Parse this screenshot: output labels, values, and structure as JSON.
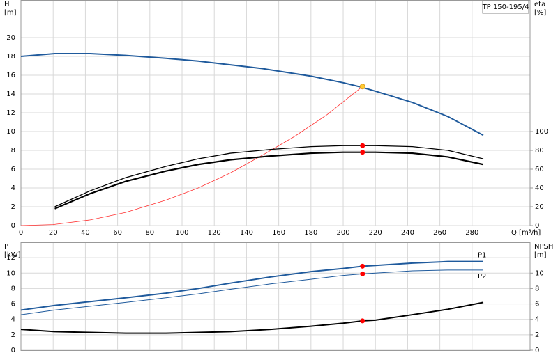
{
  "chart_data": [
    {
      "type": "line",
      "label": "TP 150-195/4",
      "xlabel": "Q [m³/h]",
      "ylabel": [
        "H",
        "[m]"
      ],
      "y2label": [
        "eta",
        "[%]"
      ],
      "xlim": [
        0,
        316
      ],
      "xticks": [
        0,
        20,
        40,
        60,
        80,
        100,
        120,
        140,
        160,
        180,
        200,
        220,
        240,
        260,
        280
      ],
      "ylim": [
        0,
        24
      ],
      "yticks": [
        0,
        2,
        4,
        6,
        8,
        10,
        12,
        14,
        16,
        18,
        20
      ],
      "y2lim": [
        0,
        240
      ],
      "y2ticks": [
        0,
        20,
        40,
        60,
        80,
        100
      ],
      "grid": true,
      "show_xtick_labels": true,
      "series": [
        {
          "color": "#1f5a9c",
          "width": 2,
          "x": [
            0,
            21,
            43,
            65,
            90,
            110,
            130,
            150,
            180,
            200,
            212,
            220,
            243,
            265,
            287
          ],
          "values": [
            18.0,
            18.3,
            18.3,
            18.1,
            17.8,
            17.5,
            17.1,
            16.7,
            15.9,
            15.2,
            14.7,
            14.3,
            13.1,
            11.6,
            9.6
          ]
        },
        {
          "color": "#ff3030",
          "width": 0.8,
          "x": [
            0,
            20,
            43,
            65,
            90,
            110,
            130,
            150,
            170,
            190,
            212
          ],
          "values": [
            0,
            0.1,
            0.6,
            1.4,
            2.7,
            4.0,
            5.6,
            7.5,
            9.5,
            11.8,
            14.8
          ]
        },
        {
          "color": "#000000",
          "width": 1.3,
          "axis": "y2",
          "x": [
            21,
            43,
            65,
            90,
            110,
            130,
            155,
            180,
            200,
            212,
            220,
            243,
            265,
            287
          ],
          "values": [
            20,
            37,
            51,
            63,
            71,
            77,
            81,
            84,
            85,
            85,
            85,
            84,
            80,
            71
          ]
        },
        {
          "color": "#000000",
          "width": 2.2,
          "axis": "y2",
          "x": [
            21,
            43,
            65,
            90,
            110,
            130,
            155,
            180,
            200,
            212,
            220,
            243,
            265,
            287
          ],
          "values": [
            18,
            34,
            47,
            58,
            65,
            70,
            74,
            77,
            78,
            78,
            78,
            77,
            73,
            65
          ]
        },
        {
          "type": "points",
          "color": "#ff0000",
          "axis": "y2",
          "x": [
            212,
            212
          ],
          "values": [
            85,
            78
          ]
        },
        {
          "type": "points",
          "color": "#ffcc33",
          "x": [
            212
          ],
          "values": [
            14.8
          ]
        }
      ]
    },
    {
      "type": "line",
      "ylabel": [
        "P",
        "[kW]"
      ],
      "y2label": [
        "NPSH",
        "[m]"
      ],
      "xlim": [
        0,
        316
      ],
      "xticks": [
        0,
        20,
        40,
        60,
        80,
        100,
        120,
        140,
        160,
        180,
        200,
        220,
        240,
        260,
        280
      ],
      "ylim": [
        0,
        14
      ],
      "yticks": [
        0,
        2,
        4,
        6,
        8,
        10,
        12
      ],
      "y2lim": [
        0,
        14
      ],
      "y2ticks": [
        0,
        2,
        4,
        6,
        8,
        10
      ],
      "grid": true,
      "show_xtick_labels": false,
      "series": [
        {
          "name": "P1",
          "color": "#1f5a9c",
          "width": 2,
          "x": [
            0,
            21,
            43,
            65,
            90,
            110,
            130,
            155,
            180,
            200,
            212,
            220,
            243,
            265,
            287
          ],
          "values": [
            5.2,
            5.8,
            6.3,
            6.8,
            7.4,
            8.0,
            8.7,
            9.5,
            10.2,
            10.6,
            10.9,
            11.0,
            11.3,
            11.5,
            11.5
          ]
        },
        {
          "name": "P2",
          "color": "#1f5a9c",
          "width": 1,
          "x": [
            0,
            21,
            43,
            65,
            90,
            110,
            130,
            155,
            180,
            200,
            212,
            220,
            243,
            265,
            287
          ],
          "values": [
            4.6,
            5.2,
            5.7,
            6.2,
            6.8,
            7.3,
            7.9,
            8.6,
            9.2,
            9.7,
            9.9,
            10.0,
            10.3,
            10.4,
            10.4
          ]
        },
        {
          "color": "#000000",
          "width": 2,
          "axis": "y2",
          "x": [
            0,
            21,
            43,
            65,
            90,
            110,
            130,
            155,
            180,
            200,
            212,
            220,
            243,
            265,
            287
          ],
          "values": [
            2.7,
            2.4,
            2.3,
            2.2,
            2.2,
            2.3,
            2.4,
            2.7,
            3.1,
            3.5,
            3.8,
            3.9,
            4.6,
            5.3,
            6.2
          ]
        },
        {
          "type": "points",
          "color": "#ff0000",
          "x": [
            212,
            212
          ],
          "values": [
            10.9,
            9.9
          ]
        },
        {
          "type": "points",
          "color": "#ff0000",
          "axis": "y2",
          "x": [
            212
          ],
          "values": [
            3.8
          ]
        }
      ]
    }
  ]
}
